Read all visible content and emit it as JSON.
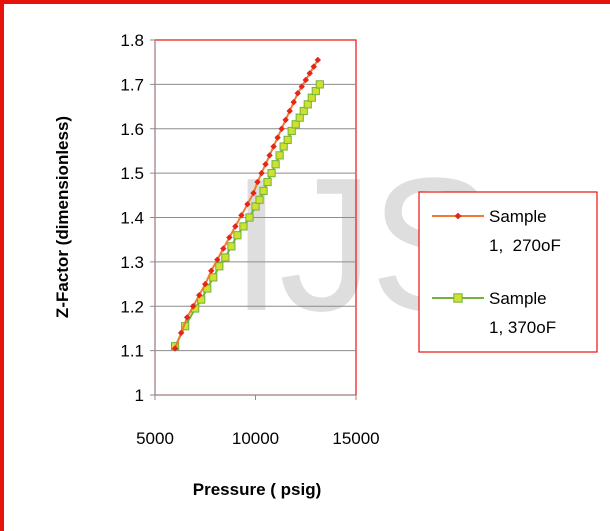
{
  "watermark": "IJS",
  "chart_data": {
    "type": "line",
    "title": "",
    "xlabel": "Pressure ( psig)",
    "ylabel": "Z-Factor (dimensionless)",
    "xlim": [
      5000,
      15000
    ],
    "ylim": [
      1,
      1.8
    ],
    "xticks": [
      "5000",
      "10000",
      "15000"
    ],
    "yticks": [
      "1",
      "1.1",
      "1.2",
      "1.3",
      "1.4",
      "1.5",
      "1.6",
      "1.7",
      "1.8"
    ],
    "grid": "horizontal",
    "legend_position": "right",
    "series": [
      {
        "name_lines": [
          "Sample",
          "1,  270oF"
        ],
        "color": "#f07b2e",
        "marker": "diamond",
        "marker_color": "#e3261b",
        "x": [
          6000,
          6300,
          6600,
          6900,
          7200,
          7500,
          7800,
          8100,
          8400,
          8700,
          9000,
          9300,
          9600,
          9900,
          10100,
          10300,
          10500,
          10700,
          10900,
          11100,
          11300,
          11500,
          11700,
          11900,
          12100,
          12300,
          12500,
          12700,
          12900,
          13100
        ],
        "y": [
          1.105,
          1.14,
          1.175,
          1.2,
          1.225,
          1.25,
          1.28,
          1.305,
          1.33,
          1.355,
          1.38,
          1.405,
          1.43,
          1.455,
          1.48,
          1.5,
          1.52,
          1.54,
          1.56,
          1.58,
          1.6,
          1.62,
          1.64,
          1.66,
          1.68,
          1.695,
          1.71,
          1.725,
          1.74,
          1.755
        ]
      },
      {
        "name_lines": [
          "Sample",
          "1, 370oF"
        ],
        "color": "#6fb33a",
        "marker": "square",
        "marker_color": "#cfe02e",
        "x": [
          6000,
          6500,
          7000,
          7300,
          7600,
          7900,
          8200,
          8500,
          8800,
          9100,
          9400,
          9700,
          10000,
          10200,
          10400,
          10600,
          10800,
          11000,
          11200,
          11400,
          11600,
          11800,
          12000,
          12200,
          12400,
          12600,
          12800,
          13000,
          13200
        ],
        "y": [
          1.11,
          1.155,
          1.195,
          1.215,
          1.24,
          1.265,
          1.29,
          1.31,
          1.335,
          1.36,
          1.38,
          1.4,
          1.425,
          1.44,
          1.46,
          1.48,
          1.5,
          1.52,
          1.54,
          1.56,
          1.575,
          1.595,
          1.61,
          1.625,
          1.64,
          1.655,
          1.67,
          1.685,
          1.7
        ]
      }
    ]
  }
}
